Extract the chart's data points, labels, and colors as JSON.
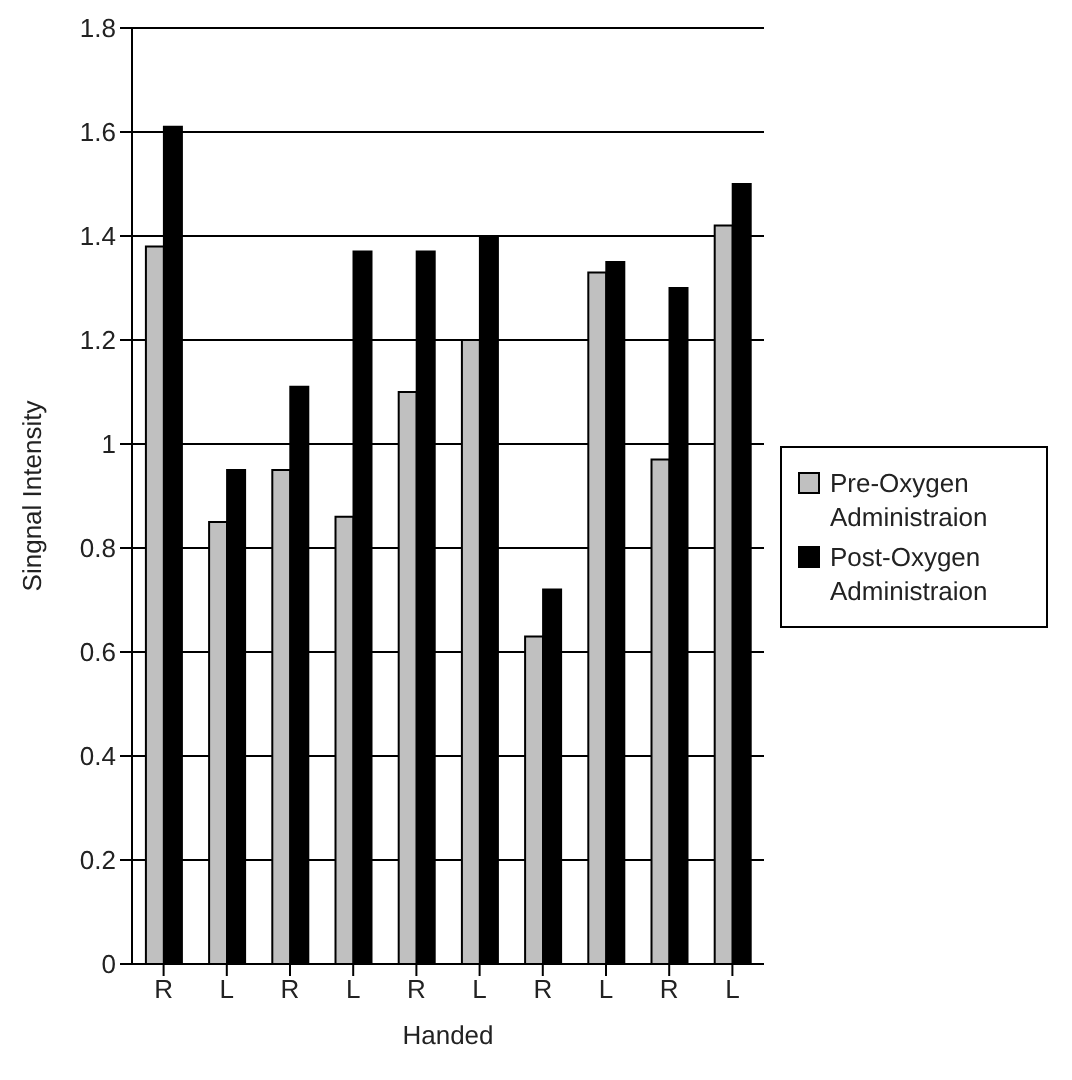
{
  "chart_data": {
    "type": "bar",
    "xlabel": "Handed",
    "ylabel": "Singnal Intensity",
    "categories": [
      "R",
      "L",
      "R",
      "L",
      "R",
      "L",
      "R",
      "L",
      "R",
      "L"
    ],
    "series": [
      {
        "name": "Pre-Oxygen Administraion",
        "color": "#c0c0c0",
        "values": [
          1.38,
          0.85,
          0.95,
          0.86,
          1.1,
          1.2,
          0.63,
          1.33,
          0.97,
          1.42
        ]
      },
      {
        "name": "Post-Oxygen Administraion",
        "color": "#000000",
        "values": [
          1.61,
          0.95,
          1.11,
          1.37,
          1.37,
          1.4,
          0.72,
          1.35,
          1.3,
          1.5
        ]
      }
    ],
    "ylim": [
      0,
      1.8
    ],
    "yticks": [
      0,
      0.2,
      0.4,
      0.6,
      0.8,
      1,
      1.2,
      1.4,
      1.6,
      1.8
    ],
    "grid": "y",
    "legend": "right"
  }
}
